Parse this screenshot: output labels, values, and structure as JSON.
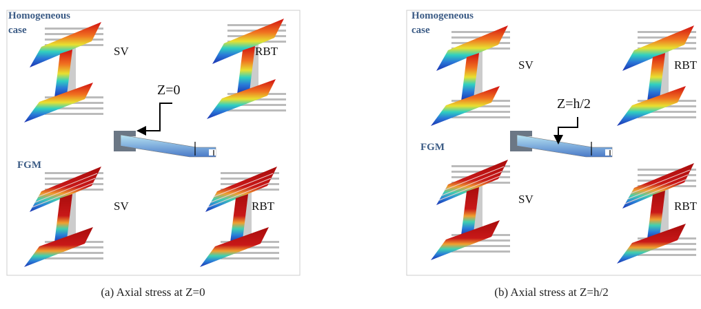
{
  "panels": [
    {
      "heading": [
        "Homogeneous",
        "case"
      ],
      "fgm": "FGM",
      "labels": [
        "SV",
        "RBT",
        "SV",
        "RBT"
      ],
      "section": "Z=0",
      "caption": "(a)  Axial stress at Z=0"
    },
    {
      "heading": [
        "Homogeneous",
        "case"
      ],
      "fgm": "FGM",
      "labels": [
        "SV",
        "RBT",
        "SV",
        "RBT"
      ],
      "section": "Z=h/2",
      "caption": "(b) Axial stress at Z=h/2"
    }
  ]
}
